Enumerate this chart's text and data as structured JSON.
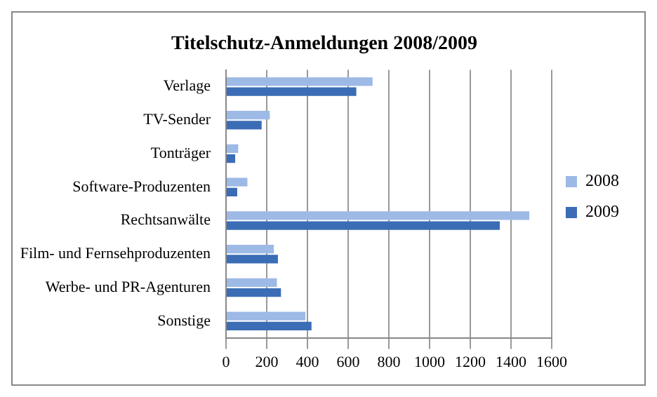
{
  "chart_data": {
    "type": "bar",
    "orientation": "horizontal",
    "title": "Titelschutz-Anmeldungen 2008/2009",
    "categories": [
      "Verlage",
      "TV-Sender",
      "Tonträger",
      "Software-Produzenten",
      "Rechtsanwälte",
      "Film- und Fernsehproduzenten",
      "Werbe- und PR-Agenturen",
      "Sonstige"
    ],
    "series": [
      {
        "name": "2008",
        "color": "#9db9e6",
        "values": [
          720,
          215,
          60,
          105,
          1490,
          235,
          250,
          390
        ]
      },
      {
        "name": "2009",
        "color": "#3a6db5",
        "values": [
          640,
          175,
          45,
          55,
          1345,
          255,
          270,
          420
        ]
      }
    ],
    "xlim": [
      0,
      1600
    ],
    "xticks": [
      0,
      200,
      400,
      600,
      800,
      1000,
      1200,
      1400,
      1600
    ],
    "grid": "x",
    "legend": "right"
  }
}
